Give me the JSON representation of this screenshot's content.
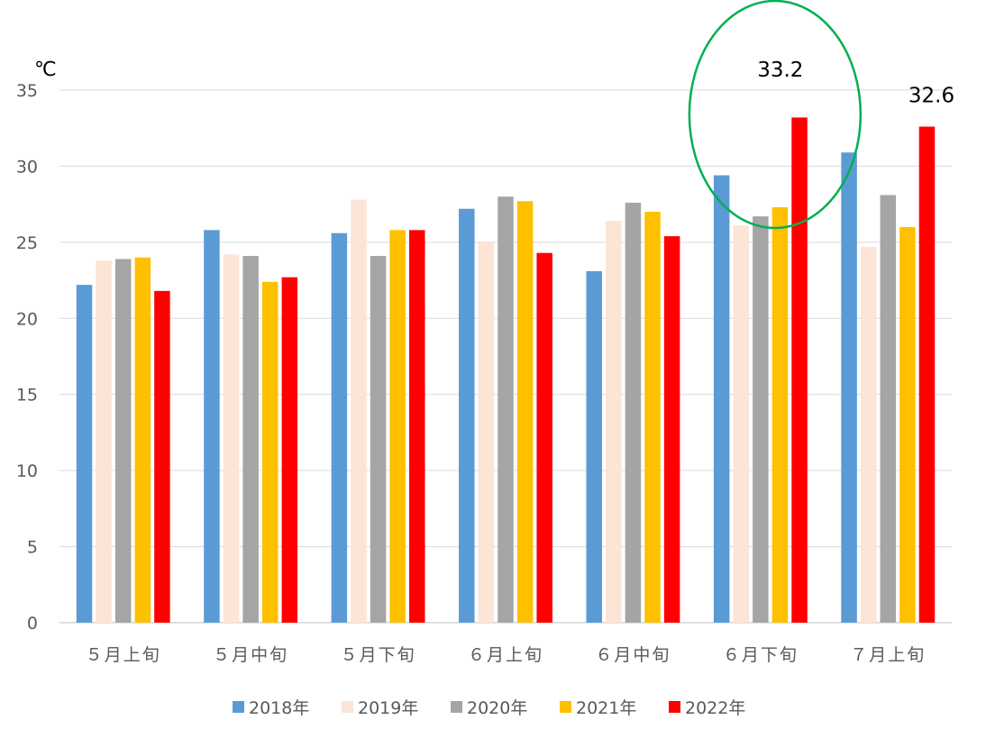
{
  "chart_data": {
    "type": "bar",
    "title": "",
    "xlabel": "",
    "ylabel": "",
    "unit_label": "℃",
    "ylim": [
      0,
      35
    ],
    "yticks": [
      0,
      5,
      10,
      15,
      20,
      25,
      30,
      35
    ],
    "grid": true,
    "legend_position": "bottom",
    "categories": [
      "５月上旬",
      "５月中旬",
      "５月下旬",
      "６月上旬",
      "６月中旬",
      "６月下旬",
      "７月上旬"
    ],
    "series": [
      {
        "name": "2018年",
        "color": "#5B9BD5",
        "values": [
          22.2,
          25.8,
          25.6,
          27.2,
          23.1,
          29.4,
          30.9
        ]
      },
      {
        "name": "2019年",
        "color": "#FCE4D6",
        "values": [
          23.8,
          24.2,
          27.8,
          25.0,
          26.4,
          26.1,
          24.7
        ]
      },
      {
        "name": "2020年",
        "color": "#A5A5A5",
        "values": [
          23.9,
          24.1,
          24.1,
          28.0,
          27.6,
          26.7,
          28.1
        ]
      },
      {
        "name": "2021年",
        "color": "#FFC000",
        "values": [
          24.0,
          22.4,
          25.8,
          27.7,
          27.0,
          27.3,
          26.0
        ]
      },
      {
        "name": "2022年",
        "color": "#FF0000",
        "values": [
          21.8,
          22.7,
          25.8,
          24.3,
          25.4,
          33.2,
          32.6
        ]
      }
    ],
    "annotations": [
      {
        "text": "33.2",
        "series": "2022年",
        "category": "６月下旬",
        "circled": true,
        "circle_color": "#00B050"
      },
      {
        "text": "32.6",
        "series": "2022年",
        "category": "７月上旬",
        "circled": false
      }
    ]
  }
}
